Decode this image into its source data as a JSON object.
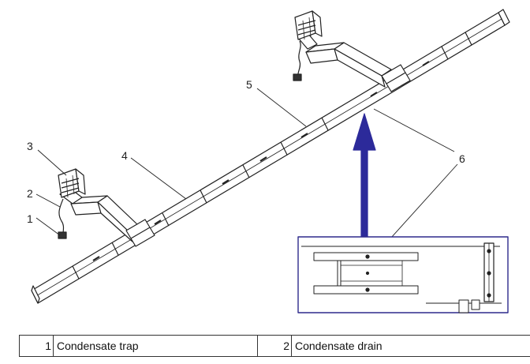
{
  "callouts": [
    "1",
    "2",
    "3",
    "4",
    "5",
    "6"
  ],
  "legend": [
    {
      "number": "1",
      "description": "Condensate trap"
    },
    {
      "number": "2",
      "description": "Condensate drain"
    }
  ],
  "colors": {
    "line": "#222222",
    "inset_border": "#2e2a8c",
    "arrow": "#2c2a9a"
  },
  "icons": {
    "arrow": "blue-up-arrow"
  }
}
